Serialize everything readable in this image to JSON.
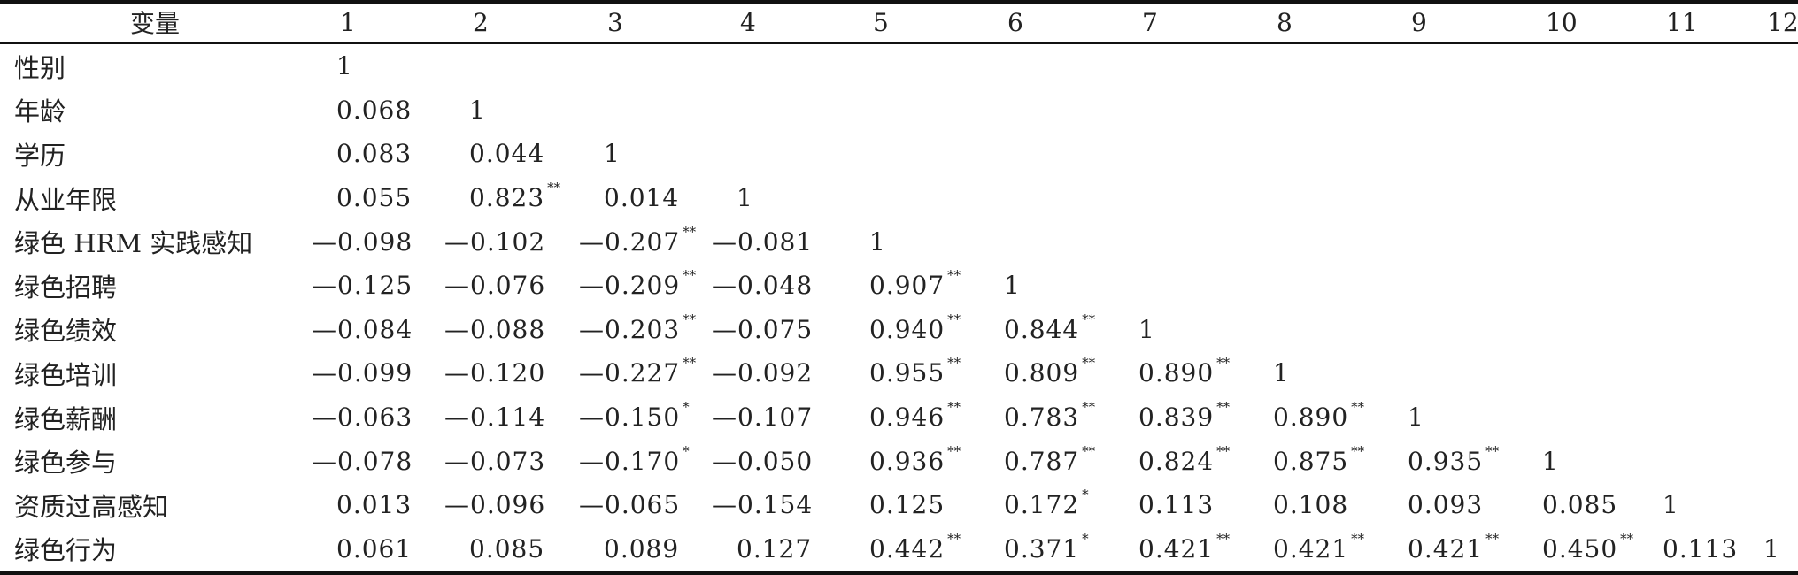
{
  "table": {
    "header_label": "变量",
    "column_headers": [
      "1",
      "2",
      "3",
      "4",
      "5",
      "6",
      "7",
      "8",
      "9",
      "10",
      "11",
      "12"
    ],
    "rows": [
      {
        "label": "性别",
        "cells": [
          {
            "v": "1",
            "sig": ""
          }
        ]
      },
      {
        "label": "年龄",
        "cells": [
          {
            "v": "0.068",
            "sig": ""
          },
          {
            "v": "1",
            "sig": ""
          }
        ]
      },
      {
        "label": "学历",
        "cells": [
          {
            "v": "0.083",
            "sig": ""
          },
          {
            "v": "0.044",
            "sig": ""
          },
          {
            "v": "1",
            "sig": ""
          }
        ]
      },
      {
        "label": "从业年限",
        "cells": [
          {
            "v": "0.055",
            "sig": ""
          },
          {
            "v": "0.823",
            "sig": "**"
          },
          {
            "v": "0.014",
            "sig": ""
          },
          {
            "v": "1",
            "sig": ""
          }
        ]
      },
      {
        "label": "绿色 HRM 实践感知",
        "cells": [
          {
            "v": "—0.098",
            "sig": ""
          },
          {
            "v": "—0.102",
            "sig": ""
          },
          {
            "v": "—0.207",
            "sig": "**"
          },
          {
            "v": "—0.081",
            "sig": ""
          },
          {
            "v": "1",
            "sig": ""
          }
        ]
      },
      {
        "label": "绿色招聘",
        "cells": [
          {
            "v": "—0.125",
            "sig": ""
          },
          {
            "v": "—0.076",
            "sig": ""
          },
          {
            "v": "—0.209",
            "sig": "**"
          },
          {
            "v": "—0.048",
            "sig": ""
          },
          {
            "v": "0.907",
            "sig": "**"
          },
          {
            "v": "1",
            "sig": ""
          }
        ]
      },
      {
        "label": "绿色绩效",
        "cells": [
          {
            "v": "—0.084",
            "sig": ""
          },
          {
            "v": "—0.088",
            "sig": ""
          },
          {
            "v": "—0.203",
            "sig": "**"
          },
          {
            "v": "—0.075",
            "sig": ""
          },
          {
            "v": "0.940",
            "sig": "**"
          },
          {
            "v": "0.844",
            "sig": "**"
          },
          {
            "v": "1",
            "sig": ""
          }
        ]
      },
      {
        "label": "绿色培训",
        "cells": [
          {
            "v": "—0.099",
            "sig": ""
          },
          {
            "v": "—0.120",
            "sig": ""
          },
          {
            "v": "—0.227",
            "sig": "**"
          },
          {
            "v": "—0.092",
            "sig": ""
          },
          {
            "v": "0.955",
            "sig": "**"
          },
          {
            "v": "0.809",
            "sig": "**"
          },
          {
            "v": "0.890",
            "sig": "**"
          },
          {
            "v": "1",
            "sig": ""
          }
        ]
      },
      {
        "label": "绿色薪酬",
        "cells": [
          {
            "v": "—0.063",
            "sig": ""
          },
          {
            "v": "—0.114",
            "sig": ""
          },
          {
            "v": "—0.150",
            "sig": "*"
          },
          {
            "v": "—0.107",
            "sig": ""
          },
          {
            "v": "0.946",
            "sig": "**"
          },
          {
            "v": "0.783",
            "sig": "**"
          },
          {
            "v": "0.839",
            "sig": "**"
          },
          {
            "v": "0.890",
            "sig": "**"
          },
          {
            "v": "1",
            "sig": ""
          }
        ]
      },
      {
        "label": "绿色参与",
        "cells": [
          {
            "v": "—0.078",
            "sig": ""
          },
          {
            "v": "—0.073",
            "sig": ""
          },
          {
            "v": "—0.170",
            "sig": "*"
          },
          {
            "v": "—0.050",
            "sig": ""
          },
          {
            "v": "0.936",
            "sig": "**"
          },
          {
            "v": "0.787",
            "sig": "**"
          },
          {
            "v": "0.824",
            "sig": "**"
          },
          {
            "v": "0.875",
            "sig": "**"
          },
          {
            "v": "0.935",
            "sig": "**"
          },
          {
            "v": "1",
            "sig": ""
          }
        ]
      },
      {
        "label": "资质过高感知",
        "cells": [
          {
            "v": "0.013",
            "sig": ""
          },
          {
            "v": "—0.096",
            "sig": ""
          },
          {
            "v": "—0.065",
            "sig": ""
          },
          {
            "v": "—0.154",
            "sig": ""
          },
          {
            "v": "0.125",
            "sig": ""
          },
          {
            "v": "0.172",
            "sig": "*"
          },
          {
            "v": "0.113",
            "sig": ""
          },
          {
            "v": "0.108",
            "sig": ""
          },
          {
            "v": "0.093",
            "sig": ""
          },
          {
            "v": "0.085",
            "sig": ""
          },
          {
            "v": "1",
            "sig": ""
          }
        ]
      },
      {
        "label": "绿色行为",
        "cells": [
          {
            "v": "0.061",
            "sig": ""
          },
          {
            "v": "0.085",
            "sig": ""
          },
          {
            "v": "0.089",
            "sig": ""
          },
          {
            "v": "0.127",
            "sig": ""
          },
          {
            "v": "0.442",
            "sig": "**"
          },
          {
            "v": "0.371",
            "sig": "*"
          },
          {
            "v": "0.421",
            "sig": "**"
          },
          {
            "v": "0.421",
            "sig": "**"
          },
          {
            "v": "0.421",
            "sig": "**"
          },
          {
            "v": "0.450",
            "sig": "**"
          },
          {
            "v": "0.113",
            "sig": ""
          },
          {
            "v": "1",
            "sig": ""
          }
        ]
      }
    ]
  }
}
